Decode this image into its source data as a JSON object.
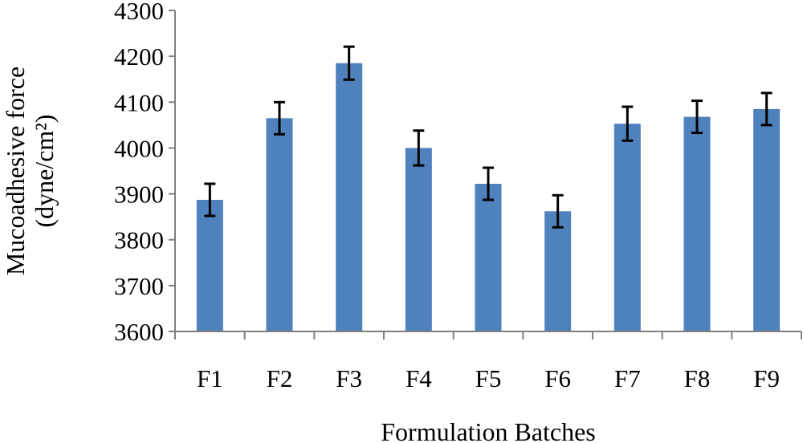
{
  "chart_data": {
    "type": "bar",
    "categories": [
      "F1",
      "F2",
      "F3",
      "F4",
      "F5",
      "F6",
      "F7",
      "F8",
      "F9"
    ],
    "series": [
      {
        "values": [
          3887,
          4065,
          4185,
          4000,
          3922,
          3862,
          4053,
          4068,
          4085
        ],
        "error": [
          35,
          35,
          36,
          38,
          35,
          35,
          37,
          35,
          35
        ]
      }
    ],
    "xlabel": "Formulation Batches",
    "ylabel_line1": "Mucoadhesive force",
    "ylabel_line2": "(dyne/cm²)",
    "ylim": [
      3600,
      4300
    ],
    "yticks": [
      3600,
      3700,
      3800,
      3900,
      4000,
      4100,
      4200,
      4300
    ],
    "grid": false,
    "legend": "none",
    "colors": {
      "bar": "#4f81bd",
      "error_bar": "#000000",
      "axis": "#7f7f7f"
    }
  }
}
